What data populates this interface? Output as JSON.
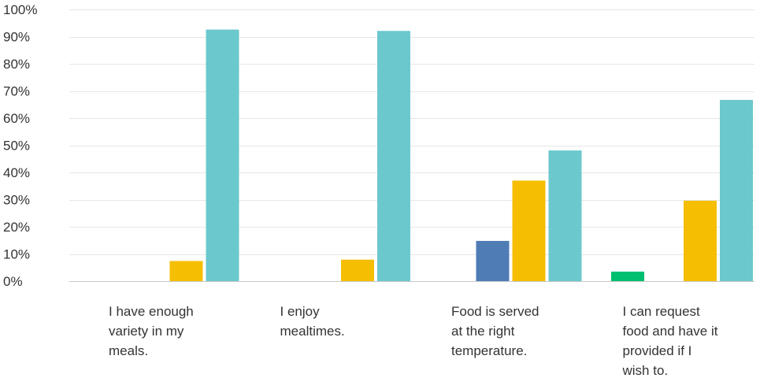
{
  "chart_data": {
    "type": "bar",
    "title": "",
    "xlabel": "",
    "ylabel": "",
    "ylim": [
      0,
      100
    ],
    "yticks": [
      0,
      10,
      20,
      30,
      40,
      50,
      60,
      70,
      80,
      90,
      100
    ],
    "ytick_suffix": "%",
    "grid": true,
    "legend": "none",
    "categories": [
      [
        "I have enough",
        "variety in my",
        "meals."
      ],
      [
        "I enjoy",
        "mealtimes."
      ],
      [
        "Food is served",
        "at the right",
        "temperature."
      ],
      [
        "I can request",
        "food and have it",
        "provided if I",
        "wish to."
      ]
    ],
    "series": [
      {
        "color": "#00bf6f",
        "values": [
          0,
          0,
          0,
          3.5
        ]
      },
      {
        "color": "#507cb6",
        "values": [
          0,
          0,
          14.8,
          0
        ]
      },
      {
        "color": "#f6be00",
        "values": [
          7.4,
          7.9,
          37.0,
          29.6
        ]
      },
      {
        "color": "#6bc8cd",
        "values": [
          92.6,
          92.1,
          48.1,
          66.7
        ]
      }
    ]
  }
}
